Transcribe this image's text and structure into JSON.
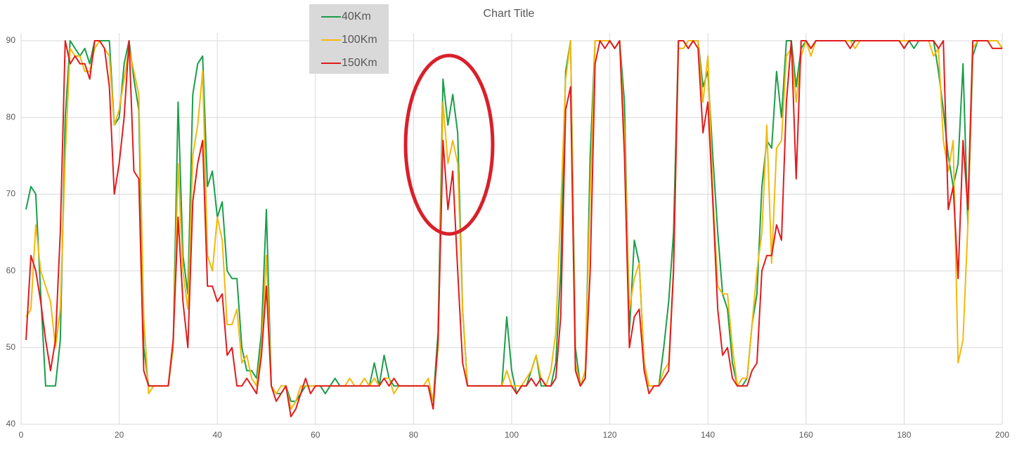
{
  "chart_data": {
    "type": "line",
    "title": "Chart Title",
    "x": [
      1,
      2,
      3,
      4,
      5,
      6,
      7,
      8,
      9,
      10,
      11,
      12,
      13,
      14,
      15,
      16,
      17,
      18,
      19,
      20,
      21,
      22,
      23,
      24,
      25,
      26,
      27,
      28,
      29,
      30,
      31,
      32,
      33,
      34,
      35,
      36,
      37,
      38,
      39,
      40,
      41,
      42,
      43,
      44,
      45,
      46,
      47,
      48,
      49,
      50,
      51,
      52,
      53,
      54,
      55,
      56,
      57,
      58,
      59,
      60,
      61,
      62,
      63,
      64,
      65,
      66,
      67,
      68,
      69,
      70,
      71,
      72,
      73,
      74,
      75,
      76,
      77,
      78,
      79,
      80,
      81,
      82,
      83,
      84,
      85,
      86,
      87,
      88,
      89,
      90,
      91,
      92,
      93,
      94,
      95,
      96,
      97,
      98,
      99,
      100,
      101,
      102,
      103,
      104,
      105,
      106,
      107,
      108,
      109,
      110,
      111,
      112,
      113,
      114,
      115,
      116,
      117,
      118,
      119,
      120,
      121,
      122,
      123,
      124,
      125,
      126,
      127,
      128,
      129,
      130,
      131,
      132,
      133,
      134,
      135,
      136,
      137,
      138,
      139,
      140,
      141,
      142,
      143,
      144,
      145,
      146,
      147,
      148,
      149,
      150,
      151,
      152,
      153,
      154,
      155,
      156,
      157,
      158,
      159,
      160,
      161,
      162,
      163,
      164,
      165,
      166,
      167,
      168,
      169,
      170,
      171,
      172,
      173,
      174,
      175,
      176,
      177,
      178,
      179,
      180,
      181,
      182,
      183,
      184,
      185,
      186,
      187,
      188,
      189,
      190,
      191,
      192,
      193,
      194,
      195,
      196,
      197,
      198,
      199,
      200
    ],
    "series": [
      {
        "name": "40Km",
        "color": "#1a9e4a",
        "values": [
          68,
          71,
          70,
          57,
          45,
          45,
          45,
          51,
          80,
          90,
          89,
          88,
          89,
          87,
          90,
          90,
          90,
          90,
          79,
          80,
          87,
          90,
          85,
          81,
          50,
          45,
          45,
          45,
          45,
          45,
          50,
          82,
          62,
          57,
          83,
          87,
          88,
          71,
          73,
          67,
          69,
          60,
          59,
          59,
          50,
          47,
          47,
          46,
          52,
          68,
          45,
          44,
          44,
          45,
          43,
          43,
          44,
          45,
          45,
          45,
          45,
          44,
          45,
          46,
          45,
          45,
          45,
          45,
          45,
          45,
          45,
          48,
          45,
          49,
          46,
          45,
          45,
          45,
          45,
          45,
          45,
          45,
          45,
          43,
          52,
          85,
          79,
          83,
          78,
          55,
          45,
          45,
          45,
          45,
          45,
          45,
          45,
          45,
          54,
          47,
          44,
          45,
          45,
          47,
          49,
          45,
          45,
          45,
          48,
          60,
          86,
          90,
          50,
          45,
          46,
          75,
          90,
          90,
          90,
          90,
          89,
          90,
          82,
          52,
          64,
          61,
          48,
          45,
          45,
          45,
          50,
          56,
          65,
          90,
          90,
          89,
          90,
          90,
          84,
          86,
          75,
          65,
          57,
          55,
          48,
          45,
          45,
          46,
          53,
          57,
          71,
          77,
          76,
          86,
          80,
          90,
          90,
          84,
          89,
          90,
          89,
          90,
          90,
          90,
          90,
          90,
          90,
          90,
          90,
          90,
          90,
          90,
          90,
          90,
          90,
          90,
          90,
          90,
          90,
          89,
          90,
          89,
          90,
          90,
          90,
          90,
          86,
          81,
          75,
          71,
          74,
          87,
          66,
          88,
          90,
          90,
          90,
          90,
          90,
          89
        ]
      },
      {
        "name": "100Km",
        "color": "#f2b90c",
        "values": [
          54,
          55,
          66,
          60,
          58,
          56,
          50,
          55,
          75,
          89,
          88,
          88,
          86,
          86,
          89,
          90,
          89,
          88,
          79,
          81,
          85,
          89,
          86,
          83,
          54,
          44,
          45,
          45,
          45,
          45,
          50,
          74,
          60,
          55,
          75,
          79,
          86,
          62,
          60,
          67,
          64,
          53,
          53,
          55,
          48,
          49,
          46,
          45,
          50,
          62,
          45,
          44,
          45,
          45,
          42,
          43,
          45,
          45,
          45,
          45,
          45,
          45,
          45,
          45,
          45,
          45,
          46,
          45,
          45,
          46,
          45,
          46,
          45,
          46,
          46,
          44,
          45,
          45,
          45,
          45,
          45,
          45,
          46,
          43,
          50,
          82,
          74,
          77,
          74,
          55,
          45,
          45,
          45,
          45,
          45,
          45,
          45,
          45,
          47,
          45,
          45,
          45,
          46,
          47,
          49,
          46,
          45,
          47,
          52,
          68,
          85,
          90,
          48,
          45,
          47,
          70,
          90,
          90,
          90,
          90,
          89,
          90,
          78,
          55,
          59,
          61,
          48,
          45,
          45,
          45,
          47,
          48,
          60,
          89,
          89,
          90,
          90,
          90,
          82,
          88,
          70,
          58,
          57,
          57,
          50,
          45,
          46,
          46,
          53,
          60,
          65,
          79,
          61,
          76,
          77,
          88,
          89,
          82,
          88,
          90,
          88,
          90,
          90,
          90,
          90,
          90,
          90,
          90,
          90,
          89,
          90,
          90,
          90,
          90,
          90,
          90,
          90,
          90,
          90,
          90,
          90,
          90,
          90,
          90,
          90,
          88,
          89,
          77,
          73,
          77,
          48,
          51,
          66,
          89,
          90,
          90,
          90,
          90,
          90,
          89
        ]
      },
      {
        "name": "150Km",
        "color": "#e31a1c",
        "values": [
          51,
          62,
          60,
          56,
          51,
          47,
          51,
          65,
          90,
          87,
          88,
          87,
          87,
          85,
          90,
          90,
          89,
          84,
          70,
          74,
          80,
          90,
          73,
          72,
          47,
          45,
          45,
          45,
          45,
          45,
          51,
          67,
          56,
          50,
          69,
          74,
          77,
          58,
          58,
          56,
          57,
          49,
          50,
          45,
          45,
          46,
          45,
          44,
          49,
          58,
          45,
          43,
          44,
          45,
          41,
          42,
          44,
          46,
          44,
          45,
          45,
          45,
          45,
          45,
          45,
          45,
          45,
          45,
          45,
          45,
          45,
          45,
          45,
          46,
          45,
          46,
          45,
          45,
          45,
          45,
          45,
          45,
          45,
          42,
          51,
          77,
          68,
          73,
          60,
          48,
          45,
          45,
          45,
          45,
          45,
          45,
          45,
          45,
          45,
          45,
          44,
          45,
          45,
          46,
          45,
          46,
          45,
          45,
          46,
          54,
          81,
          84,
          47,
          45,
          46,
          60,
          87,
          90,
          89,
          90,
          89,
          90,
          75,
          50,
          54,
          55,
          47,
          44,
          45,
          45,
          46,
          47,
          60,
          90,
          90,
          89,
          90,
          89,
          78,
          82,
          69,
          55,
          49,
          50,
          46,
          45,
          45,
          45,
          47,
          48,
          60,
          62,
          62,
          66,
          64,
          82,
          90,
          72,
          90,
          90,
          89,
          90,
          90,
          90,
          90,
          90,
          90,
          90,
          89,
          90,
          90,
          90,
          90,
          90,
          90,
          90,
          90,
          90,
          90,
          89,
          90,
          90,
          90,
          90,
          90,
          90,
          89,
          90,
          68,
          71,
          59,
          77,
          68,
          90,
          90,
          90,
          90,
          89,
          89,
          89
        ]
      }
    ],
    "xlim": [
      0,
      200
    ],
    "xticks": [
      0,
      20,
      40,
      60,
      80,
      100,
      120,
      140,
      160,
      180,
      200
    ],
    "ylim": [
      40,
      90
    ],
    "yticks": [
      40,
      50,
      60,
      70,
      80,
      90
    ],
    "grid": true,
    "legend": "top-left"
  }
}
